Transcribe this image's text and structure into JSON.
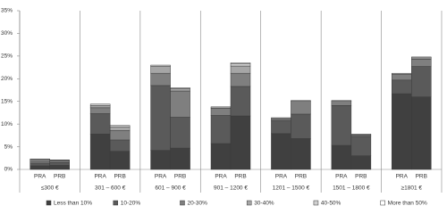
{
  "chart_data": {
    "type": "stacked_bar",
    "categories": [
      "PRA",
      "PRB",
      "PRA",
      "PRB",
      "PRA",
      "PRB",
      "PRA",
      "PRB",
      "PRA",
      "PRB",
      "PRA",
      "PRB",
      "PRA",
      "PRB"
    ],
    "groups": [
      "≤300 €",
      "301 – 600 €",
      "601 – 900 €",
      "901 – 1200 €",
      "1201 – 1500 €",
      "1501 – 1800 €",
      "≥1801 €"
    ],
    "series": [
      {
        "name": "Less than 10%",
        "color": "#404040",
        "values": [
          0.8,
          0.9,
          7.8,
          4.0,
          4.2,
          4.7,
          5.7,
          11.8,
          7.9,
          6.8,
          5.3,
          3.0,
          16.7,
          16.0
        ]
      },
      {
        "name": "10-20%",
        "color": "#5a5a5a",
        "values": [
          0.6,
          0.6,
          4.5,
          2.5,
          14.3,
          6.8,
          6.2,
          6.5,
          2.9,
          5.4,
          8.8,
          4.3,
          3.0,
          6.7
        ]
      },
      {
        "name": "20-30%",
        "color": "#7f7f7f",
        "values": [
          0.5,
          0.3,
          1.3,
          2.1,
          2.7,
          5.8,
          1.6,
          2.9,
          0.4,
          2.8,
          0.9,
          0.3,
          1.3,
          1.6
        ]
      },
      {
        "name": "30-40%",
        "color": "#a6a6a6",
        "values": [
          0.3,
          0.2,
          0.5,
          0.8,
          1.5,
          0.5,
          0.3,
          1.6,
          0.2,
          0.2,
          0.2,
          0.2,
          0.2,
          0.3
        ]
      },
      {
        "name": "40-50%",
        "color": "#d0d0d0",
        "values": [
          0.1,
          0.1,
          0.3,
          0.3,
          0.3,
          0.2,
          0,
          0.5,
          0,
          0,
          0,
          0,
          0,
          0.2
        ]
      },
      {
        "name": "More than 50%",
        "color": "#ffffff",
        "values": [
          0,
          0,
          0,
          0,
          0,
          0,
          0,
          0.2,
          0,
          0,
          0,
          0,
          0,
          0
        ]
      }
    ],
    "ylim": [
      0,
      35
    ],
    "yticks": [
      {
        "value": 0,
        "label": "0%"
      },
      {
        "value": 5,
        "label": "5%"
      },
      {
        "value": 10,
        "label": "10%"
      },
      {
        "value": 15,
        "label": "15%"
      },
      {
        "value": 20,
        "label": "20%"
      },
      {
        "value": 25,
        "label": "25%"
      },
      {
        "value": 30,
        "label": "30%"
      },
      {
        "value": 35,
        "label": "35%"
      }
    ],
    "grid": false
  }
}
